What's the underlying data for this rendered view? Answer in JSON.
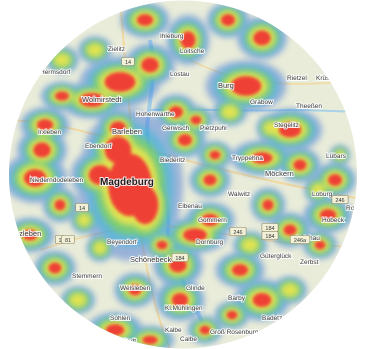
{
  "map": {
    "heat_colors": {
      "hot": "#ef4035",
      "warm": "#f6e84a",
      "mild": "#7fd35a",
      "cool": "#3fb8d9",
      "cold": "#3a6fd9"
    },
    "background_color": "#e9ecd9",
    "places": {
      "magdeburg": "Magdeburg",
      "burg": "Burg",
      "wolmirstedt": "Wolmirstedt",
      "barleben": "Barleben",
      "zielitz": "Zielitz",
      "loitsche": "Loitsche",
      "gerwisch": "Gerwisch",
      "pietzpuhl": "Pietzpuhl",
      "hohenwarthe": "Hohenwarthe",
      "ihleburg": "Ihleburg",
      "rietzel": "Rietzel",
      "krussau": "Krüssau",
      "grabow": "Grabow",
      "theellen": "Theeßen",
      "tryppehna": "Tryppehna",
      "mockern": "Möckern",
      "loburg": "Loburg",
      "lubars": "Lübars",
      "wanzleben": "Wanzleben",
      "niederndodeleben": "Niederndodeleben",
      "ebendorf": "Ebendorf",
      "hermsdorf": "Hermsdorf",
      "irxleben": "Irxleben",
      "gommern": "Gommern",
      "schonebeck": "Schönebeck",
      "stemmern": "Stemmern",
      "barby": "Barby",
      "calbe": "Calbe",
      "walwitz": "Walwitz",
      "schopsdorf": "Schopsdorf",
      "gutergluck": "Güterglück",
      "biederitz": "Biederitz",
      "dornburg": "Dornburg",
      "zerbst": "Zerbst",
      "kalbe": "Kalbe",
      "glinde": "Glinde",
      "gross_rosenburg": "Groß Rosenburg",
      "klein_muhlingen": "Kl.Mühlingen",
      "beyendorf": "Beyendorf",
      "hobeck": "Hobeck",
      "dalchau": "Dalchau",
      "stegelitz": "Stegelitz",
      "paplitz": "Paplitz",
      "trippigleben": "Trippigleben",
      "elbenau": "Elbenau",
      "welsleben": "Welsleben",
      "tucheim": "Tucheim",
      "rosian": "Rosian",
      "genthin": "Genthin",
      "zabakuck": "Zabakuck",
      "badetz": "Badetz",
      "edstedt": "edtedt",
      "pretzien": "Pretzien",
      "lostau": "Lostau",
      "sohlen": "Sohlen"
    },
    "road_shields": [
      "14",
      "14",
      "1",
      "81",
      "184",
      "246",
      "246a",
      "184",
      "246",
      "184"
    ]
  }
}
